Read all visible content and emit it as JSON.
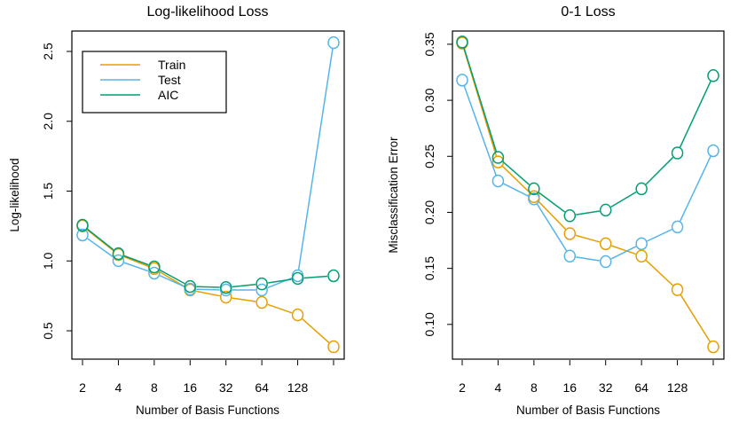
{
  "chart_data": [
    {
      "type": "line",
      "title": "Log-likelihood Loss",
      "xlabel": "Number of Basis Functions",
      "ylabel": "Log-likelihood",
      "x_scale": "log2",
      "x": [
        2,
        4,
        8,
        16,
        32,
        64,
        128,
        256
      ],
      "x_tick_labels": [
        "2",
        "4",
        "8",
        "16",
        "32",
        "64",
        "128",
        ""
      ],
      "ylim": [
        0.297,
        2.646
      ],
      "y_ticks": [
        0.5,
        1.0,
        1.5,
        2.0,
        2.5
      ],
      "y_tick_labels": [
        "0.5",
        "1.0",
        "1.5",
        "2.0",
        "2.5"
      ],
      "grid": false,
      "legend": {
        "placement": "top-left",
        "entries": [
          "Train",
          "Test",
          "AIC"
        ]
      },
      "series": [
        {
          "name": "Train",
          "color": "#E69F00",
          "values": [
            1.25,
            1.045,
            0.945,
            0.792,
            0.741,
            0.703,
            0.614,
            0.386
          ]
        },
        {
          "name": "Test",
          "color": "#56B4E9",
          "values": [
            1.186,
            1.002,
            0.913,
            0.798,
            0.792,
            0.792,
            0.894,
            2.563
          ]
        },
        {
          "name": "AIC",
          "color": "#009E73",
          "values": [
            1.256,
            1.052,
            0.957,
            0.817,
            0.81,
            0.836,
            0.875,
            0.894
          ]
        }
      ]
    },
    {
      "type": "line",
      "title": "0-1 Loss",
      "xlabel": "Number of Basis Functions",
      "ylabel": "Misclassification Error",
      "x_scale": "log2",
      "x": [
        2,
        4,
        8,
        16,
        32,
        64,
        128,
        256
      ],
      "x_tick_labels": [
        "2",
        "4",
        "8",
        "16",
        "32",
        "64",
        "128",
        ""
      ],
      "ylim": [
        0.069,
        0.3618
      ],
      "y_ticks": [
        0.1,
        0.15,
        0.2,
        0.25,
        0.3,
        0.35
      ],
      "y_tick_labels": [
        "0.10",
        "0.15",
        "0.20",
        "0.25",
        "0.30",
        "0.35"
      ],
      "grid": false,
      "legend": null,
      "series": [
        {
          "name": "Train",
          "color": "#E69F00",
          "values": [
            0.351,
            0.245,
            0.214,
            0.181,
            0.172,
            0.161,
            0.131,
            0.08
          ]
        },
        {
          "name": "Test",
          "color": "#56B4E9",
          "values": [
            0.318,
            0.228,
            0.212,
            0.161,
            0.156,
            0.172,
            0.187,
            0.255
          ]
        },
        {
          "name": "AIC",
          "color": "#009E73",
          "values": [
            0.352,
            0.249,
            0.221,
            0.197,
            0.202,
            0.221,
            0.253,
            0.322
          ]
        }
      ]
    }
  ]
}
